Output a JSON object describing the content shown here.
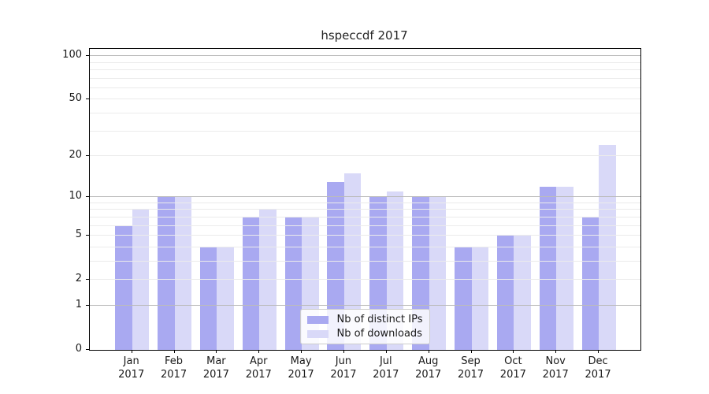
{
  "chart_data": {
    "type": "bar",
    "title": "hspeccdf 2017",
    "year_label": "2017",
    "categories": [
      "Jan",
      "Feb",
      "Mar",
      "Apr",
      "May",
      "Jun",
      "Jul",
      "Aug",
      "Sep",
      "Oct",
      "Nov",
      "Dec"
    ],
    "series": [
      {
        "name": "Nb of distinct IPs",
        "color": "#a9a9f1",
        "values": [
          6,
          10,
          4,
          7,
          7,
          13,
          10,
          10,
          4,
          5,
          12,
          7
        ]
      },
      {
        "name": "Nb of downloads",
        "color": "#d9d9f8",
        "values": [
          8,
          10,
          4,
          8,
          7,
          15,
          11,
          10,
          4,
          5,
          12,
          24
        ]
      }
    ],
    "yscale": "log1p",
    "ylim": [
      0,
      112
    ],
    "ytick_labels": [
      "0",
      "1",
      "2",
      "5",
      "10",
      "20",
      "50",
      "100"
    ],
    "ytick_values": [
      0,
      1,
      2,
      5,
      10,
      20,
      50,
      100
    ],
    "ymajor_gridlines": [
      1,
      10,
      100
    ],
    "yminor_gridlines": [
      2,
      3,
      4,
      5,
      6,
      7,
      8,
      9,
      20,
      30,
      40,
      50,
      60,
      70,
      80,
      90
    ],
    "grid": true,
    "legend_position": "lower center",
    "colors": {
      "major_grid": "#bbbbbb",
      "minor_grid": "#ebebeb",
      "axis": "#000000",
      "text": "#1a1a1a"
    }
  }
}
